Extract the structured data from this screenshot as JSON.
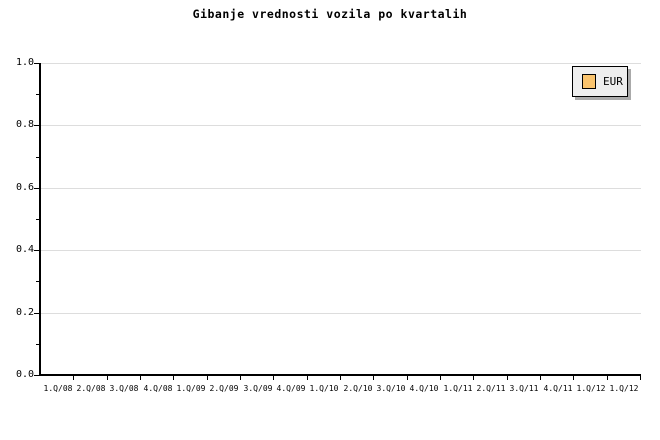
{
  "title": "Gibanje vrednosti vozila po kvartalih",
  "legend": {
    "position": "top-right",
    "items": [
      {
        "label": "EUR",
        "swatch_color": "#FAC46E"
      }
    ]
  },
  "colors": {
    "background": "#FFFFFF",
    "axis": "#000000",
    "grid": "#DDDDDD",
    "legend_bg": "#EEEEEE",
    "legend_border": "#000000",
    "legend_shadow": "#AAAAAA",
    "text": "#000000",
    "series_eur": "#FAC46E"
  },
  "chart_data": {
    "type": "line",
    "title": "Gibanje vrednosti vozila po kvartalih",
    "categories": [
      "1.Q/08",
      "2.Q/08",
      "3.Q/08",
      "4.Q/08",
      "1.Q/09",
      "2.Q/09",
      "3.Q/09",
      "4.Q/09",
      "1.Q/10",
      "2.Q/10",
      "3.Q/10",
      "4.Q/10",
      "1.Q/11",
      "2.Q/11",
      "3.Q/11",
      "4.Q/11",
      "1.Q/12",
      "1.Q/12"
    ],
    "series": [
      {
        "name": "EUR",
        "color": "#FAC46E",
        "values": []
      }
    ],
    "xlabel": "",
    "ylabel": "",
    "ylim": [
      0.0,
      1.0
    ],
    "y_major_step": 0.2,
    "y_minor_step": 0.1,
    "y_tick_labels": [
      "0.0",
      "0.2",
      "0.4",
      "0.6",
      "0.8",
      "1.0"
    ],
    "grid": true,
    "grid_orientation": "horizontal",
    "legend_position": "top-right",
    "plot_empty": true
  }
}
